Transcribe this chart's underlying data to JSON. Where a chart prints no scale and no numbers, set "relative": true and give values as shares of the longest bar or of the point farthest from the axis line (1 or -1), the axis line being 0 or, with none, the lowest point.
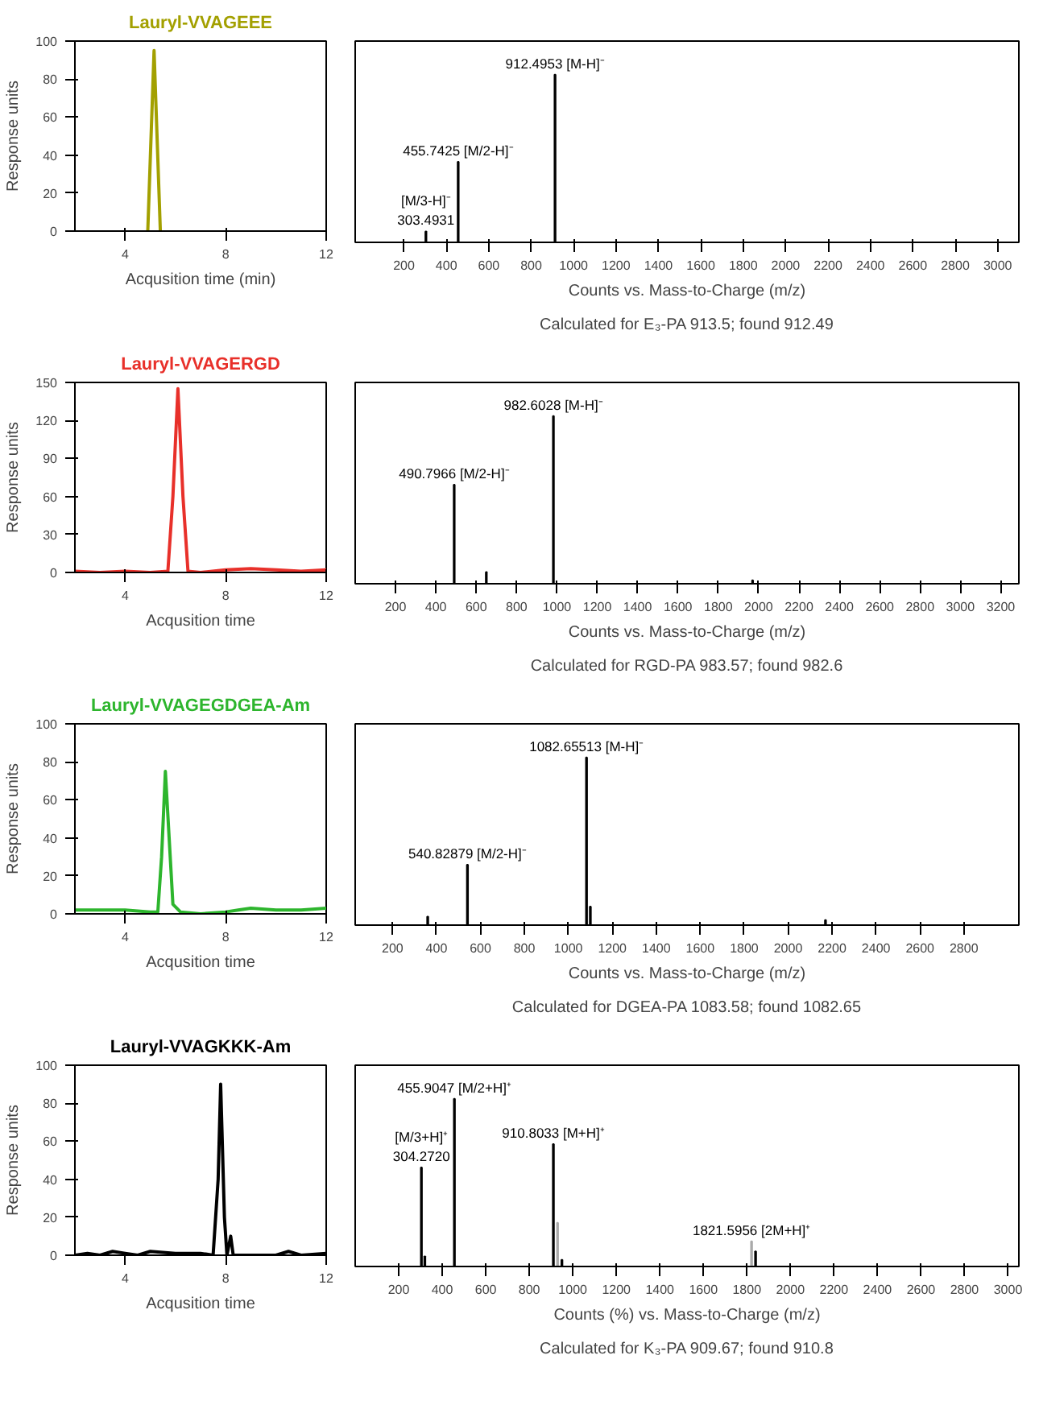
{
  "chart_data": [
    {
      "type": "line",
      "title": "Lauryl-VVAGEEE",
      "xlabel": "Acqusition time (min)",
      "ylabel": "Response units",
      "xlim": [
        2,
        12
      ],
      "xticks": [
        4,
        8,
        12
      ],
      "ylim": [
        0,
        100
      ],
      "yticks": [
        0,
        20,
        40,
        60,
        80,
        100
      ],
      "x": [
        4.9,
        5.15,
        5.4
      ],
      "series": [
        {
          "color": "#a3a000",
          "values": [
            0,
            95,
            0
          ]
        }
      ]
    },
    {
      "type": "bar",
      "relative": true,
      "xlabel": "Counts vs. Mass-to-Charge (m/z)",
      "xlim": [
        -30,
        3100
      ],
      "xticks": [
        200,
        400,
        600,
        800,
        1000,
        1200,
        1400,
        1600,
        1800,
        2000,
        2200,
        2400,
        2600,
        2800,
        3000
      ],
      "x": [
        303.4931,
        455.7425,
        912.4953
      ],
      "values": [
        0.065,
        0.48,
        1
      ],
      "colors": [
        "#000000",
        "#000000",
        "#000000"
      ],
      "annotations": [
        {
          "text": "[M/3-H]⁻\n303.4931",
          "x": 303.4931,
          "y": 0.065
        },
        {
          "text": "455.7425 [M/2-H]⁻",
          "x": 455.7425,
          "y": 0.48
        },
        {
          "text": "912.4953 [M-H]⁻",
          "x": 912.4953,
          "y": 1
        },
        "Calculated for E₃-PA 913.5; found 912.49"
      ]
    },
    {
      "type": "line",
      "title": "Lauryl-VVAGERGD",
      "xlabel": "Acqusition time",
      "ylabel": "Response units",
      "xlim": [
        2,
        12
      ],
      "xticks": [
        4,
        8,
        12
      ],
      "ylim": [
        0,
        150
      ],
      "yticks": [
        0,
        30,
        60,
        90,
        120,
        150
      ],
      "x": [
        2,
        3,
        4,
        5,
        5.7,
        5.9,
        6.1,
        6.3,
        6.5,
        7,
        8,
        9,
        10,
        11,
        12
      ],
      "series": [
        {
          "color": "#e8302a",
          "values": [
            1,
            0,
            1,
            0,
            1,
            60,
            145,
            60,
            1,
            0,
            2,
            3,
            2,
            1,
            2
          ]
        }
      ]
    },
    {
      "type": "bar",
      "relative": true,
      "xlabel": "Counts vs. Mass-to-Charge (m/z)",
      "xlim": [
        0,
        3290
      ],
      "xticks": [
        200,
        400,
        600,
        800,
        1000,
        1200,
        1400,
        1600,
        1800,
        2000,
        2200,
        2400,
        2600,
        2800,
        3000,
        3200
      ],
      "x": [
        490.7966,
        650,
        982.6028,
        1970
      ],
      "values": [
        0.59,
        0.07,
        1,
        0.02
      ],
      "colors": [
        "#000000",
        "#000000",
        "#000000",
        "#000000"
      ],
      "annotations": [
        {
          "text": "490.7966 [M/2-H]⁻",
          "x": 490.7966,
          "y": 0.59
        },
        {
          "text": "982.6028 [M-H]⁻",
          "x": 982.6028,
          "y": 1
        },
        "Calculated for RGD-PA 983.57; found 982.6"
      ]
    },
    {
      "type": "line",
      "title": "Lauryl-VVAGEGDGEA-Am",
      "xlabel": "Acqusition time",
      "ylabel": "Response units",
      "xlim": [
        2,
        12
      ],
      "xticks": [
        4,
        8,
        12
      ],
      "ylim": [
        0,
        100
      ],
      "yticks": [
        0,
        20,
        40,
        60,
        80,
        100
      ],
      "x": [
        2,
        3,
        4,
        5,
        5.3,
        5.45,
        5.6,
        5.75,
        5.9,
        6.2,
        7,
        8,
        8.5,
        9,
        10,
        11,
        12
      ],
      "series": [
        {
          "color": "#2db52d",
          "values": [
            2,
            2,
            2,
            1,
            1,
            30,
            75,
            40,
            5,
            1,
            0,
            1,
            2,
            3,
            2,
            2,
            3
          ]
        }
      ]
    },
    {
      "type": "bar",
      "relative": true,
      "xlabel": "Counts vs. Mass-to-Charge (m/z)",
      "xlim": [
        30,
        3050
      ],
      "xticks": [
        200,
        400,
        600,
        800,
        1000,
        1200,
        1400,
        1600,
        1800,
        2000,
        2200,
        2400,
        2600,
        2800
      ],
      "x": [
        360,
        540.82879,
        1082.65513,
        1100,
        2170
      ],
      "values": [
        0.05,
        0.36,
        1,
        0.11,
        0.03
      ],
      "colors": [
        "#000000",
        "#000000",
        "#000000",
        "#000000",
        "#000000"
      ],
      "annotations": [
        {
          "text": "540.82879 [M/2-H]⁻",
          "x": 540.82879,
          "y": 0.36
        },
        {
          "text": "1082.65513 [M-H]⁻",
          "x": 1082.65513,
          "y": 1
        },
        "Calculated for DGEA-PA 1083.58; found 1082.65"
      ]
    },
    {
      "type": "line",
      "title": "Lauryl-VVAGKKK-Am",
      "xlabel": "Acqusition time",
      "ylabel": "Response units",
      "xlim": [
        2,
        12
      ],
      "xticks": [
        4,
        8,
        12
      ],
      "ylim": [
        0,
        100
      ],
      "yticks": [
        0,
        20,
        40,
        60,
        80,
        100
      ],
      "x": [
        2,
        2.5,
        3,
        3.5,
        4,
        4.5,
        5,
        6,
        7,
        7.5,
        7.7,
        7.8,
        7.95,
        8.05,
        8.2,
        8.3,
        9,
        10,
        10.5,
        11,
        12
      ],
      "series": [
        {
          "color": "#000000",
          "values": [
            0,
            1,
            0,
            2,
            1,
            0,
            2,
            1,
            1,
            0,
            40,
            90,
            20,
            0,
            10,
            0,
            0,
            0,
            2,
            0,
            1
          ]
        }
      ]
    },
    {
      "type": "bar",
      "relative": true,
      "xlabel": "Counts (%) vs. Mass-to-Charge (m/z)",
      "xlim": [
        0,
        3050
      ],
      "xticks": [
        200,
        400,
        600,
        800,
        1000,
        1200,
        1400,
        1600,
        1800,
        2000,
        2200,
        2400,
        2600,
        2800,
        3000
      ],
      "x": [
        304.272,
        320,
        455.9047,
        910.8033,
        930,
        950,
        1821.5956,
        1840
      ],
      "values": [
        0.59,
        0.06,
        1,
        0.73,
        0.26,
        0.04,
        0.15,
        0.09
      ],
      "colors": [
        "#000000",
        "#000000",
        "#000000",
        "#000000",
        "#aaaaaa",
        "#000000",
        "#aaaaaa",
        "#000000"
      ],
      "annotations": [
        {
          "text": "[M/3+H]⁺\n304.2720",
          "x": 304.272,
          "y": 0.59
        },
        {
          "text": "455.9047 [M/2+H]⁺",
          "x": 455.9047,
          "y": 1
        },
        {
          "text": "910.8033 [M+H]⁺",
          "x": 910.8033,
          "y": 0.73
        },
        {
          "text": "1821.5956 [2M+H]⁺",
          "x": 1821.5956,
          "y": 0.15
        },
        "Calculated for K₃-PA 909.67; found 910.8"
      ]
    }
  ]
}
